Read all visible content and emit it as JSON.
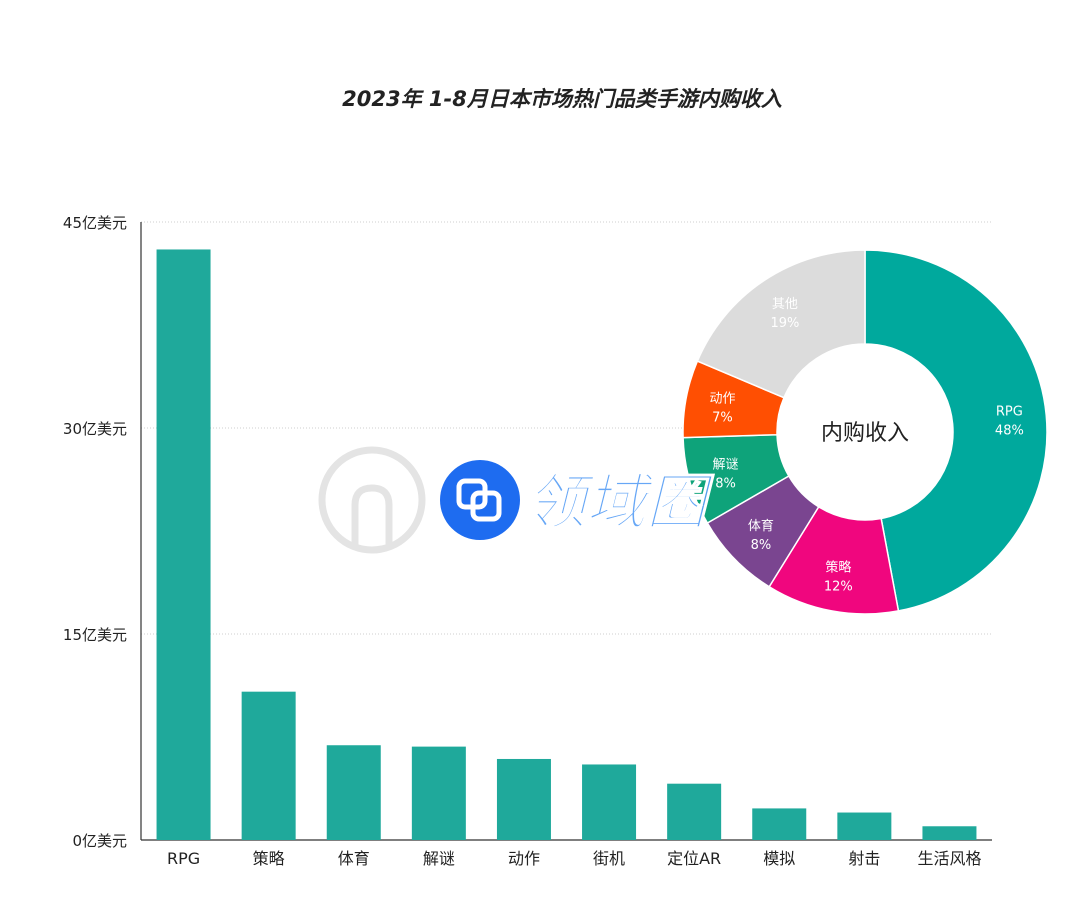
{
  "bar_chart": {
    "title": "2023年 1-8月日本市场热门品类手游内购收入"
  },
  "donut_chart": {
    "center_label": "内购收入"
  },
  "watermark": {
    "text": "领域圈"
  },
  "colors": {
    "bar": "#1fa99b",
    "axis": "#333333",
    "grid": "#cfcfcf"
  },
  "chart_data": [
    {
      "type": "bar",
      "title": "2023年 1-8月日本市场热门品类手游内购收入",
      "categories": [
        "RPG",
        "策略",
        "体育",
        "解谜",
        "动作",
        "街机",
        "定位AR",
        "模拟",
        "射击",
        "生活风格"
      ],
      "values": [
        43.0,
        10.8,
        6.9,
        6.8,
        5.9,
        5.5,
        4.1,
        2.3,
        2.0,
        1.0
      ],
      "ylim": [
        0,
        45
      ],
      "yticks": [
        0,
        15,
        30,
        45
      ],
      "ytick_labels": [
        "0亿美元",
        "15亿美元",
        "30亿美元",
        "45亿美元"
      ],
      "grid": true
    },
    {
      "type": "pie",
      "title": "内购收入",
      "labels": [
        "RPG",
        "策略",
        "体育",
        "解谜",
        "动作",
        "其他"
      ],
      "values": [
        48,
        12,
        8,
        8,
        7,
        19
      ],
      "value_labels": [
        "48%",
        "12%",
        "8%",
        "8%",
        "7%",
        "19%"
      ],
      "colors": [
        "#00a99d",
        "#f0067e",
        "#7a4590",
        "#0ea37a",
        "#ff4f02",
        "#dcdcdc"
      ]
    }
  ]
}
